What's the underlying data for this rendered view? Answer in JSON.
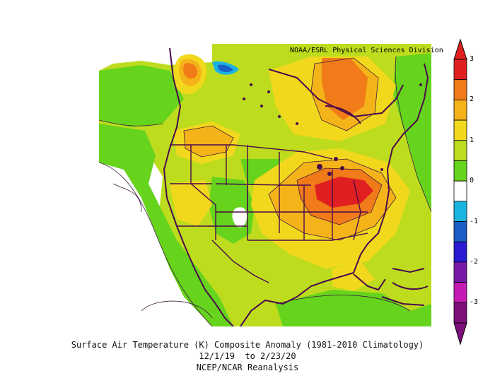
{
  "credit": "NOAA/ESRL Physical Sciences Division",
  "caption": {
    "line1": "Surface Air Temperature (K) Composite Anomaly (1981-2010 Climatology)",
    "line2": "12/1/19  to 2/23/20",
    "line3": "NCEP/NCAR Reanalysis"
  },
  "colorbar": {
    "labels": [
      "3",
      "2",
      "1",
      "0",
      "-1",
      "-2",
      "-3"
    ],
    "colors": [
      "#e02020",
      "#f07b18",
      "#f5b31a",
      "#f2d81d",
      "#bedc1e",
      "#66d41c",
      "#ffffff",
      "#1ab4e0",
      "#1a5ec8",
      "#2a1ad2",
      "#7a1aa8",
      "#c61ab4",
      "#7d0f7a"
    ]
  },
  "palette": {
    "coast": "#4a0a4a",
    "contour": "#3c1a3c"
  }
}
